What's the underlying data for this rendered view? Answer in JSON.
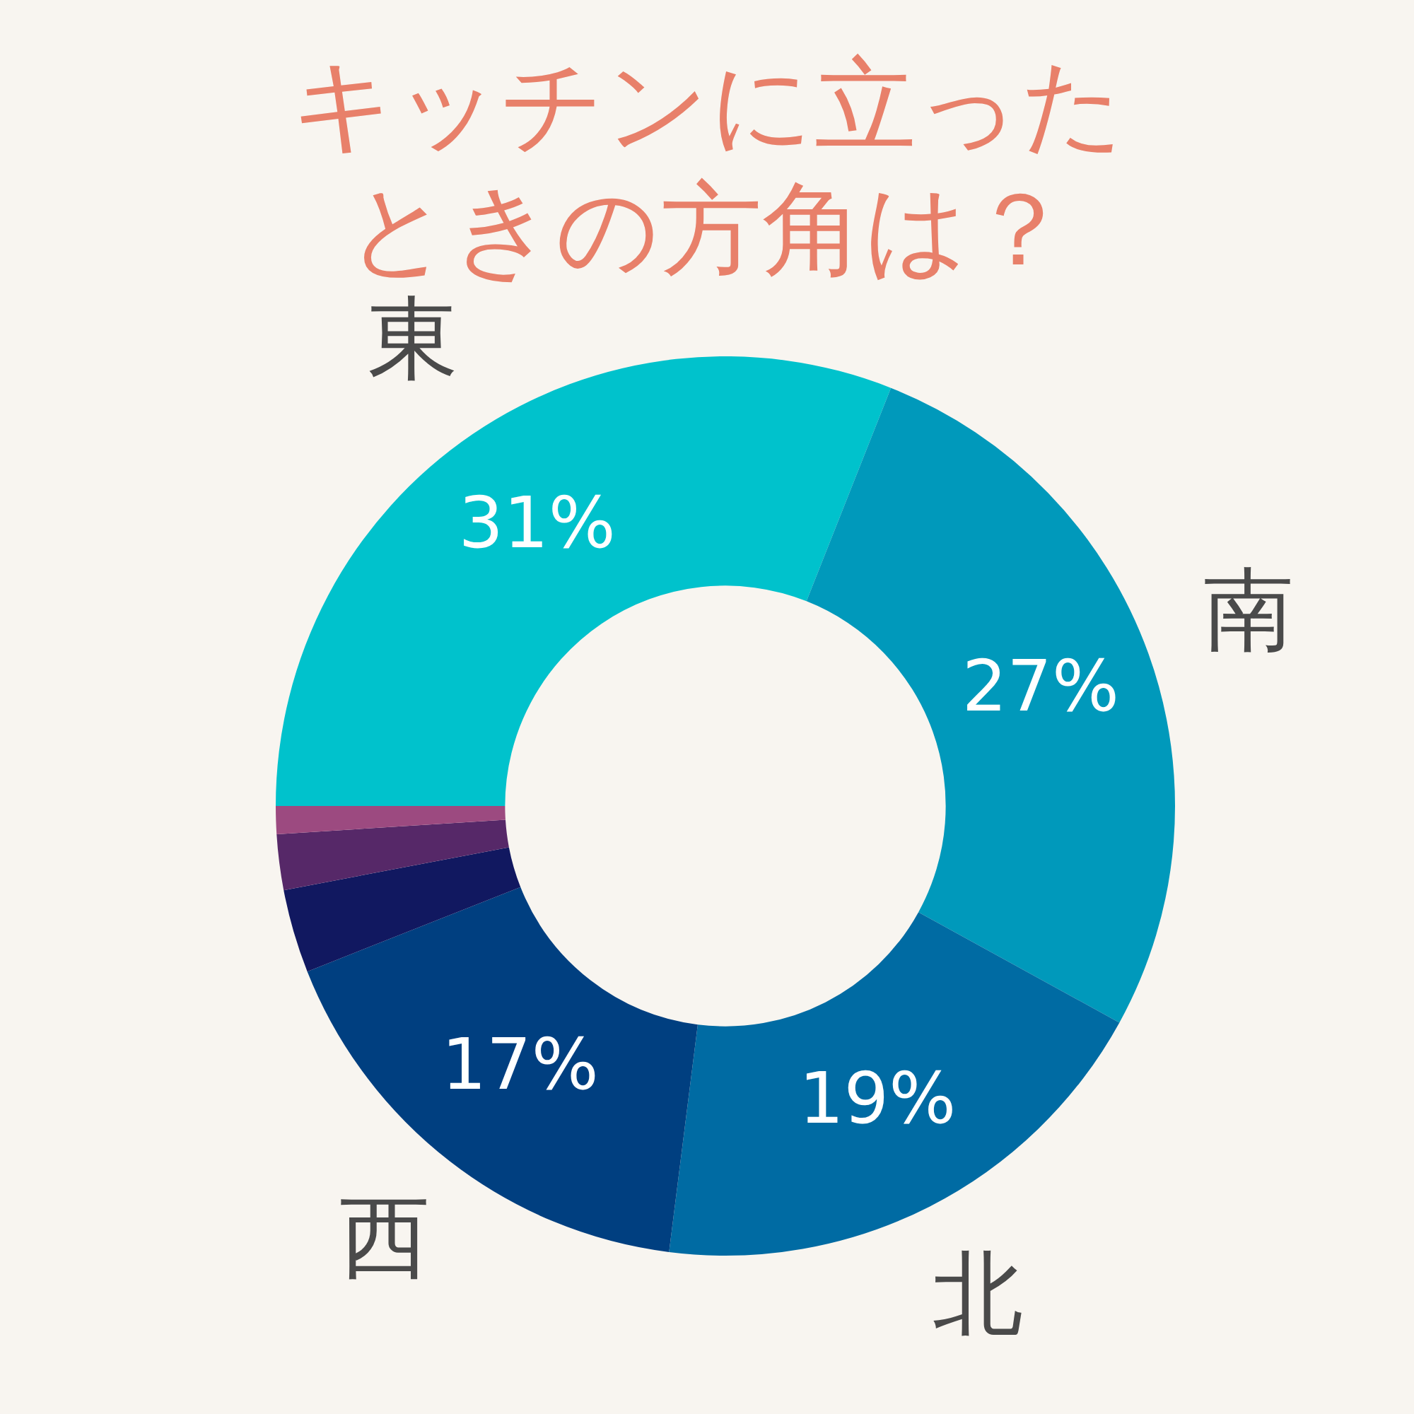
{
  "chart_data": {
    "type": "donut",
    "title": "キッチンに立ったときの方角は？",
    "categories": [
      "東",
      "南",
      "北",
      "西",
      null,
      null,
      null
    ],
    "values": [
      31,
      27,
      19,
      17,
      3,
      2,
      1
    ],
    "colors": [
      "#00c2cc",
      "#0099bb",
      "#006ba3",
      "#003f80",
      "#111860",
      "#562868",
      "#9c4a80"
    ],
    "value_labels": [
      "31%",
      "27%",
      "19%",
      "17%",
      null,
      null,
      null
    ],
    "legend": false
  }
}
